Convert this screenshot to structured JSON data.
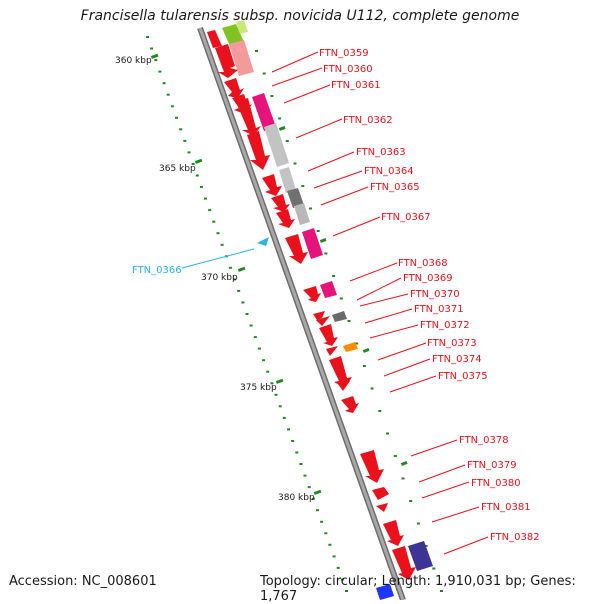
{
  "title": "Francisella tularensis subsp. novicida U112, complete genome",
  "footer": {
    "accession": "Accession: NC_008601",
    "summary": "Topology: circular; Length: 1,910,031 bp; Genes: 1,767"
  },
  "colors": {
    "forward_gene": "#e8111c",
    "reverse_gene": "#2ab4e5",
    "tick": "#1f8a1f",
    "backbone": "#8a8a8a"
  },
  "scale_labels": [
    "360 kbp",
    "365 kbp",
    "370 kbp",
    "375 kbp",
    "380 kbp"
  ],
  "genes": [
    {
      "label": "FTN_0359",
      "strand": "forward"
    },
    {
      "label": "FTN_0360",
      "strand": "forward"
    },
    {
      "label": "FTN_0361",
      "strand": "forward"
    },
    {
      "label": "FTN_0362",
      "strand": "forward"
    },
    {
      "label": "FTN_0363",
      "strand": "forward"
    },
    {
      "label": "FTN_0364",
      "strand": "forward"
    },
    {
      "label": "FTN_0365",
      "strand": "forward"
    },
    {
      "label": "FTN_0367",
      "strand": "forward"
    },
    {
      "label": "FTN_0366",
      "strand": "reverse"
    },
    {
      "label": "FTN_0368",
      "strand": "forward"
    },
    {
      "label": "FTN_0369",
      "strand": "forward"
    },
    {
      "label": "FTN_0370",
      "strand": "forward"
    },
    {
      "label": "FTN_0371",
      "strand": "forward"
    },
    {
      "label": "FTN_0372",
      "strand": "forward"
    },
    {
      "label": "FTN_0373",
      "strand": "forward"
    },
    {
      "label": "FTN_0374",
      "strand": "forward"
    },
    {
      "label": "FTN_0375",
      "strand": "forward"
    },
    {
      "label": "FTN_0378",
      "strand": "forward"
    },
    {
      "label": "FTN_0379",
      "strand": "forward"
    },
    {
      "label": "FTN_0380",
      "strand": "forward"
    },
    {
      "label": "FTN_0381",
      "strand": "forward"
    },
    {
      "label": "FTN_0382",
      "strand": "forward"
    }
  ]
}
